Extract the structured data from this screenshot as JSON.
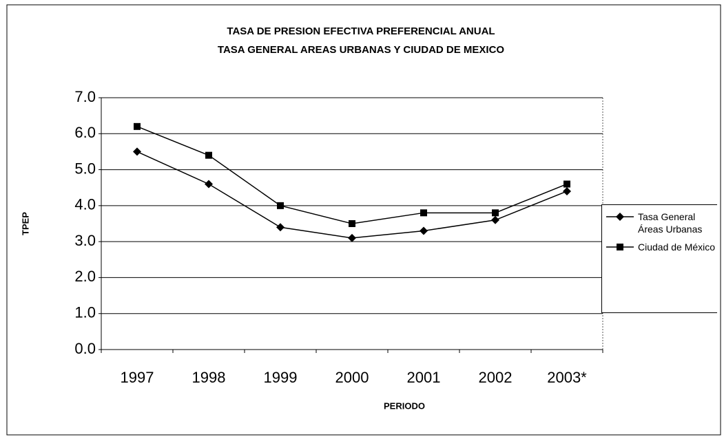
{
  "chart_data": {
    "type": "line",
    "title": "TASA DE PRESION EFECTIVA PREFERENCIAL ANUAL",
    "subtitle": "TASA GENERAL AREAS URBANAS Y CIUDAD DE MEXICO",
    "x_label": "PERIODO",
    "y_label": "TPEP",
    "categories": [
      "1997",
      "1998",
      "1999",
      "2000",
      "2001",
      "2002",
      "2003*"
    ],
    "series": [
      {
        "name": "Tasa General Áreas Urbanas",
        "color": "#000000",
        "marker": "diamond",
        "values": [
          5.5,
          4.6,
          3.4,
          3.1,
          3.3,
          3.6,
          4.4
        ]
      },
      {
        "name": "Ciudad de México",
        "color": "#000000",
        "marker": "square",
        "values": [
          6.2,
          5.4,
          4.0,
          3.5,
          3.8,
          3.8,
          4.6
        ]
      }
    ],
    "ylim": [
      0,
      7
    ],
    "yticks": [
      {
        "value": 0,
        "label": "0.0"
      },
      {
        "value": 1,
        "label": "1.0"
      },
      {
        "value": 2,
        "label": "2.0"
      },
      {
        "value": 3,
        "label": "3.0"
      },
      {
        "value": 4,
        "label": "4.0"
      },
      {
        "value": 5,
        "label": "5.0"
      },
      {
        "value": 6,
        "label": "6.0"
      },
      {
        "value": 7,
        "label": "7.0"
      }
    ],
    "grid": true,
    "legend": "right"
  }
}
